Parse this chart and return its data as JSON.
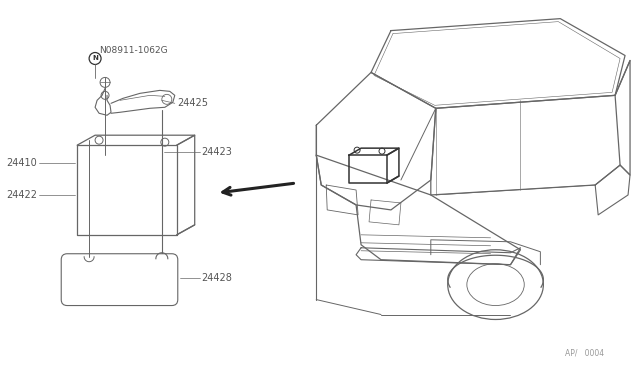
{
  "bg_color": "#ffffff",
  "line_color": "#666666",
  "dark_line_color": "#333333",
  "arrow_color": "#222222",
  "text_color": "#555555",
  "fig_width": 6.4,
  "fig_height": 3.72,
  "dpi": 100,
  "labels": {
    "part_number_top": "N08911-1062G",
    "part_24425": "24425",
    "part_24410": "24410",
    "part_24423": "24423",
    "part_24422": "24422",
    "part_24428": "24428",
    "page_ref": "AP/   0004"
  }
}
